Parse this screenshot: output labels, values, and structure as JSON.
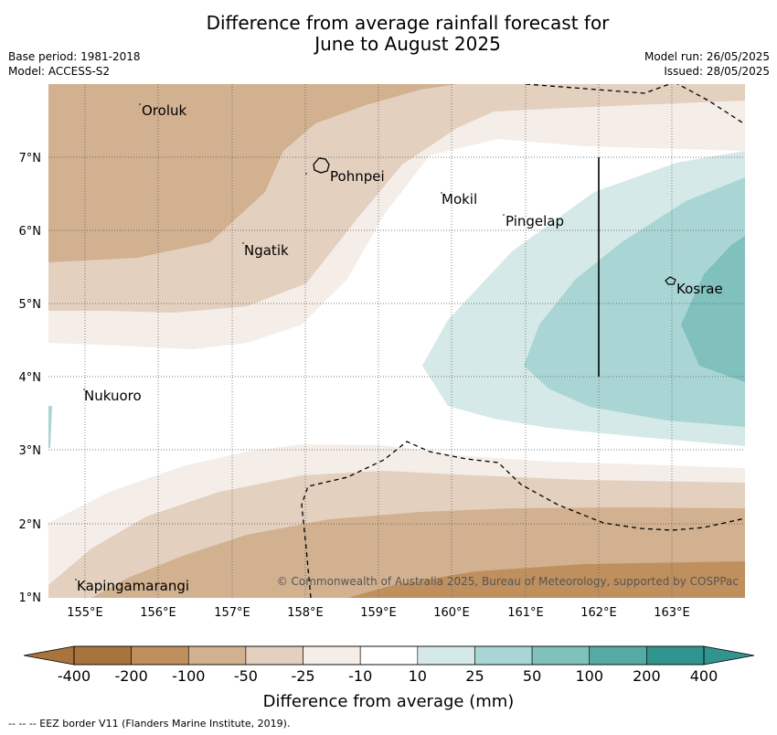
{
  "title_line1": "Difference from average rainfall forecast for",
  "title_line2": "June to August 2025",
  "base_period": "Base period: 1981-2018",
  "model": "Model: ACCESS-S2",
  "model_run": "Model run: 26/05/2025",
  "issued": "Issued: 28/05/2025",
  "copyright": "© Commonwealth of Australia 2025, Bureau of Meteorology, supported by COSPPac",
  "footer": "--  --  -- EEZ border V11 (Flanders Marine Institute, 2019).",
  "map": {
    "lon_ticks": [
      "155°E",
      "156°E",
      "157°E",
      "158°E",
      "159°E",
      "160°E",
      "161°E",
      "162°E",
      "163°E"
    ],
    "lat_ticks": [
      "7°N",
      "6°N",
      "5°N",
      "4°N",
      "3°N",
      "2°N",
      "1°N"
    ],
    "places": [
      "Oroluk",
      "Pohnpei",
      "Mokil",
      "Pingelap",
      "Ngatik",
      "Kosrae",
      "Nukuoro",
      "Kapingamarangi"
    ]
  },
  "colorbar": {
    "title": "Difference from average (mm)",
    "tick_labels": [
      "-400",
      "-200",
      "-100",
      "-50",
      "-25",
      "-10",
      "10",
      "25",
      "50",
      "100",
      "200",
      "400"
    ],
    "colors": [
      "#a8733c",
      "#bf905e",
      "#d2b190",
      "#e3d0bf",
      "#f4ede8",
      "#ffffff",
      "#d5e9e8",
      "#a9d6d4",
      "#80c0bd",
      "#55aaa6",
      "#32948f"
    ]
  }
}
